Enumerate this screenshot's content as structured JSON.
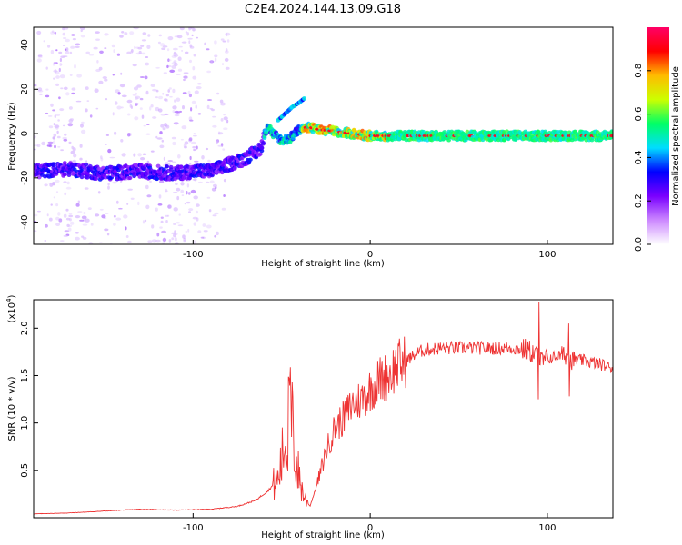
{
  "title": "C2E4.2024.144.13.09.G18",
  "chart_data": [
    {
      "type": "heatmap",
      "xlabel": "Height of straight line (km)",
      "ylabel": "Frequency (Hz)",
      "xlim": [
        -190,
        137
      ],
      "ylim": [
        -50,
        48
      ],
      "x_ticks": [
        -100,
        0,
        100
      ],
      "y_ticks": [
        -40,
        -20,
        0,
        20,
        40
      ],
      "colorbar": {
        "label": "Normalized spectral amplitude",
        "range": [
          0,
          1
        ],
        "ticks": [
          "0.0",
          "0.2",
          "0.4",
          "0.6",
          "0.8"
        ],
        "colors": [
          "#ffffff",
          "#cc88ff",
          "#7a00ff",
          "#0000ff",
          "#00ddff",
          "#00ff66",
          "#ccff00",
          "#ffbb00",
          "#ff0000",
          "#ff0066"
        ]
      },
      "ridge": {
        "x": [
          -190,
          -170,
          -150,
          -130,
          -110,
          -100,
          -90,
          -80,
          -70,
          -62,
          -58,
          -55,
          -50,
          -45,
          -40,
          -35,
          -30,
          -20,
          -10,
          0,
          20,
          50,
          80,
          100,
          120,
          137
        ],
        "y": [
          -17,
          -16,
          -18,
          -17,
          -18,
          -17,
          -17,
          -14,
          -11,
          -7,
          4,
          0,
          -3,
          -2,
          2,
          3,
          2,
          1,
          0,
          -1,
          -1,
          -1,
          -1,
          -1,
          -1,
          -1
        ]
      },
      "side_branch": {
        "x": [
          -52,
          -48,
          -44,
          -40,
          -37
        ],
        "y": [
          6,
          9,
          12,
          14,
          16
        ]
      }
    },
    {
      "type": "line",
      "xlabel": "Height of straight line (km)",
      "ylabel": "SNR (10 * v/v)",
      "y_multiplier": "(x10",
      "y_multiplier_exp": "4",
      "y_multiplier_close": ")",
      "xlim": [
        -190,
        137
      ],
      "ylim": [
        0,
        23000
      ],
      "x_ticks": [
        -100,
        0,
        100
      ],
      "y_ticks": [
        5000,
        10000,
        15000,
        20000
      ],
      "y_tick_labels": [
        "0.5",
        "1.0",
        "1.5",
        "2.0"
      ],
      "color": "#ee3333",
      "series": [
        {
          "x": [
            -190,
            -170,
            -150,
            -130,
            -110,
            -90,
            -75,
            -65,
            -58,
            -52,
            -48,
            -45,
            -42,
            -38,
            -34,
            -30,
            -25,
            -20,
            -15,
            -10,
            -5,
            0,
            5,
            10,
            15,
            20,
            25,
            30,
            40,
            50,
            60,
            70,
            80,
            88,
            92,
            95,
            98,
            100,
            105,
            110,
            113,
            120,
            130,
            137
          ],
          "y": [
            400,
            500,
            700,
            900,
            800,
            900,
            1200,
            1800,
            2800,
            4000,
            8000,
            11500,
            6000,
            2500,
            1200,
            3500,
            7000,
            9500,
            10500,
            12000,
            12500,
            13500,
            14500,
            15000,
            16000,
            16500,
            17200,
            17700,
            17900,
            17900,
            17900,
            17900,
            17900,
            17700,
            17400,
            17000,
            16500,
            16800,
            17000,
            17200,
            16600,
            16600,
            16200,
            15800
          ]
        }
      ]
    }
  ]
}
